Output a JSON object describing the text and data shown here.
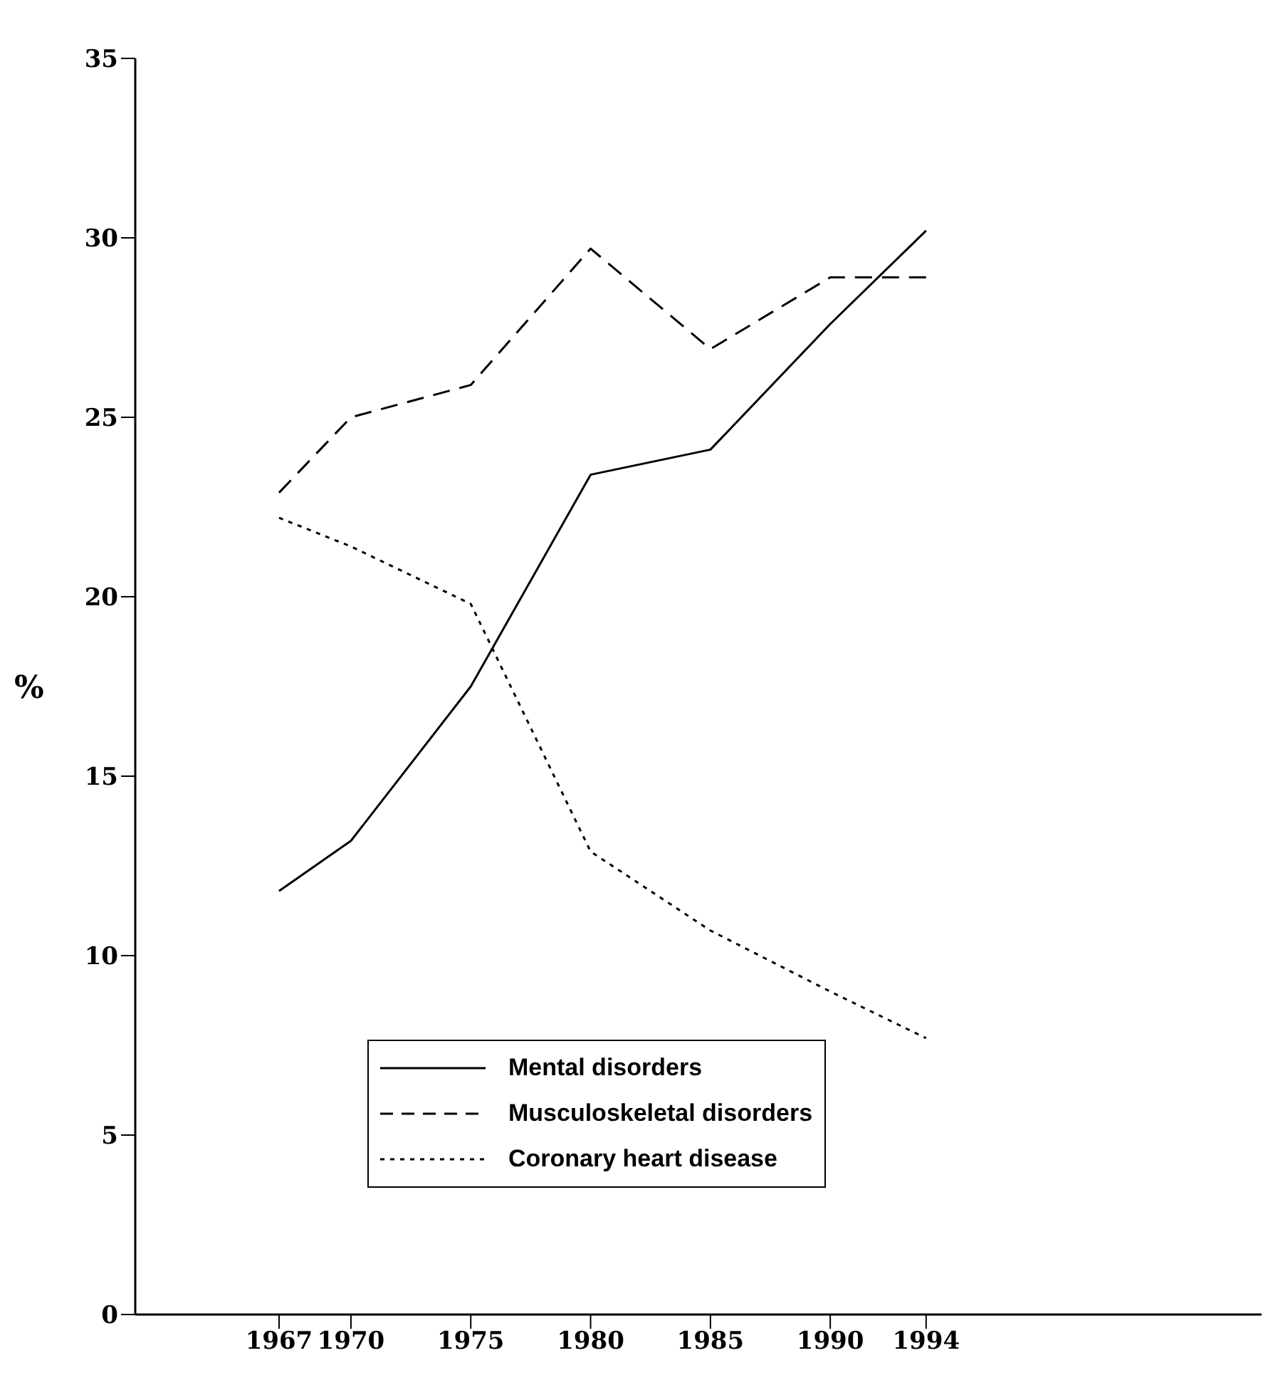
{
  "chart_data": {
    "type": "line",
    "ylabel": "%",
    "x": [
      1967,
      1970,
      1975,
      1980,
      1985,
      1990,
      1994
    ],
    "xlim": [
      1961,
      2008
    ],
    "xticks": [
      1967,
      1970,
      1975,
      1980,
      1985,
      1990,
      1994
    ],
    "ylim": [
      0,
      35
    ],
    "yticks": [
      0,
      5,
      10,
      15,
      20,
      25,
      30,
      35
    ],
    "legend": "bottom",
    "series": [
      {
        "name": "Mental disorders",
        "color": "#000000",
        "line_style": "solid",
        "values": [
          11.8,
          13.2,
          17.5,
          23.4,
          24.1,
          27.6,
          30.2
        ]
      },
      {
        "name": "Musculoskeletal disorders",
        "color": "#000000",
        "line_style": "dashed",
        "values": [
          22.9,
          25.0,
          25.9,
          29.7,
          26.9,
          28.9,
          28.9
        ]
      },
      {
        "name": "Coronary heart disease",
        "color": "#000000",
        "line_style": "dotted",
        "values": [
          22.2,
          21.4,
          19.8,
          12.9,
          10.7,
          9.0,
          7.7
        ]
      }
    ]
  }
}
